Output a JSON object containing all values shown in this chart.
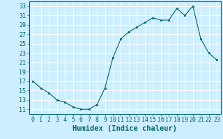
{
  "x": [
    0,
    1,
    2,
    3,
    4,
    5,
    6,
    7,
    8,
    9,
    10,
    11,
    12,
    13,
    14,
    15,
    16,
    17,
    18,
    19,
    20,
    21,
    22,
    23
  ],
  "y": [
    17,
    15.5,
    14.5,
    13,
    12.5,
    11.5,
    11,
    11,
    12,
    15.5,
    22,
    26,
    27.5,
    28.5,
    29.5,
    30.5,
    30,
    30,
    32.5,
    31,
    33,
    26,
    23,
    21.5
  ],
  "line_color": "#006666",
  "marker": "s",
  "marker_size": 2,
  "bg_color": "#cceeff",
  "grid_color": "#ffffff",
  "xlabel": "Humidex (Indice chaleur)",
  "xlim": [
    -0.5,
    23.5
  ],
  "ylim": [
    10,
    34
  ],
  "yticks": [
    11,
    13,
    15,
    17,
    19,
    21,
    23,
    25,
    27,
    29,
    31,
    33
  ],
  "xticks": [
    0,
    1,
    2,
    3,
    4,
    5,
    6,
    7,
    8,
    9,
    10,
    11,
    12,
    13,
    14,
    15,
    16,
    17,
    18,
    19,
    20,
    21,
    22,
    23
  ],
  "tick_color": "#006666",
  "label_color": "#006666",
  "font_size": 6,
  "xlabel_fontsize": 7.5
}
